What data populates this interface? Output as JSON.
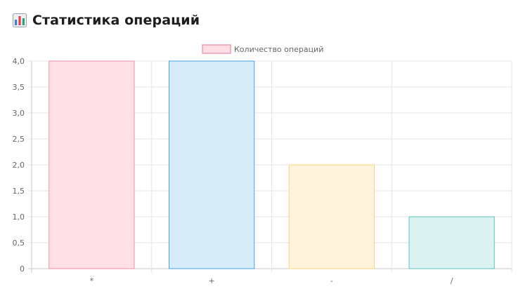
{
  "page": {
    "title": "Статистика операций",
    "title_icon": "bar-chart-icon"
  },
  "chart_data": {
    "type": "bar",
    "title": "",
    "xlabel": "",
    "ylabel": "",
    "categories": [
      "*",
      "+",
      "-",
      "/"
    ],
    "series": [
      {
        "name": "Количество операций",
        "values": [
          4,
          4,
          2,
          1
        ]
      }
    ],
    "ylim": [
      0,
      4
    ],
    "y_ticks": [
      "0",
      "0,5",
      "1,0",
      "1,5",
      "2,0",
      "2,5",
      "3,0",
      "3,5",
      "4,0"
    ],
    "grid": true,
    "legend_position": "top-center",
    "legend_swatch_color": "#ffdde4",
    "legend_swatch_border": "#ee9fb3",
    "bar_colors": [
      {
        "fill": "#ffe0e6",
        "stroke": "#f28fae"
      },
      {
        "fill": "#d7ebf9",
        "stroke": "#4aa3de"
      },
      {
        "fill": "#fff3dc",
        "stroke": "#f7d67a"
      },
      {
        "fill": "#dbf2f0",
        "stroke": "#5cc2c0"
      }
    ],
    "grid_color": "#e6e6e6",
    "axis_text_color": "#666666"
  }
}
